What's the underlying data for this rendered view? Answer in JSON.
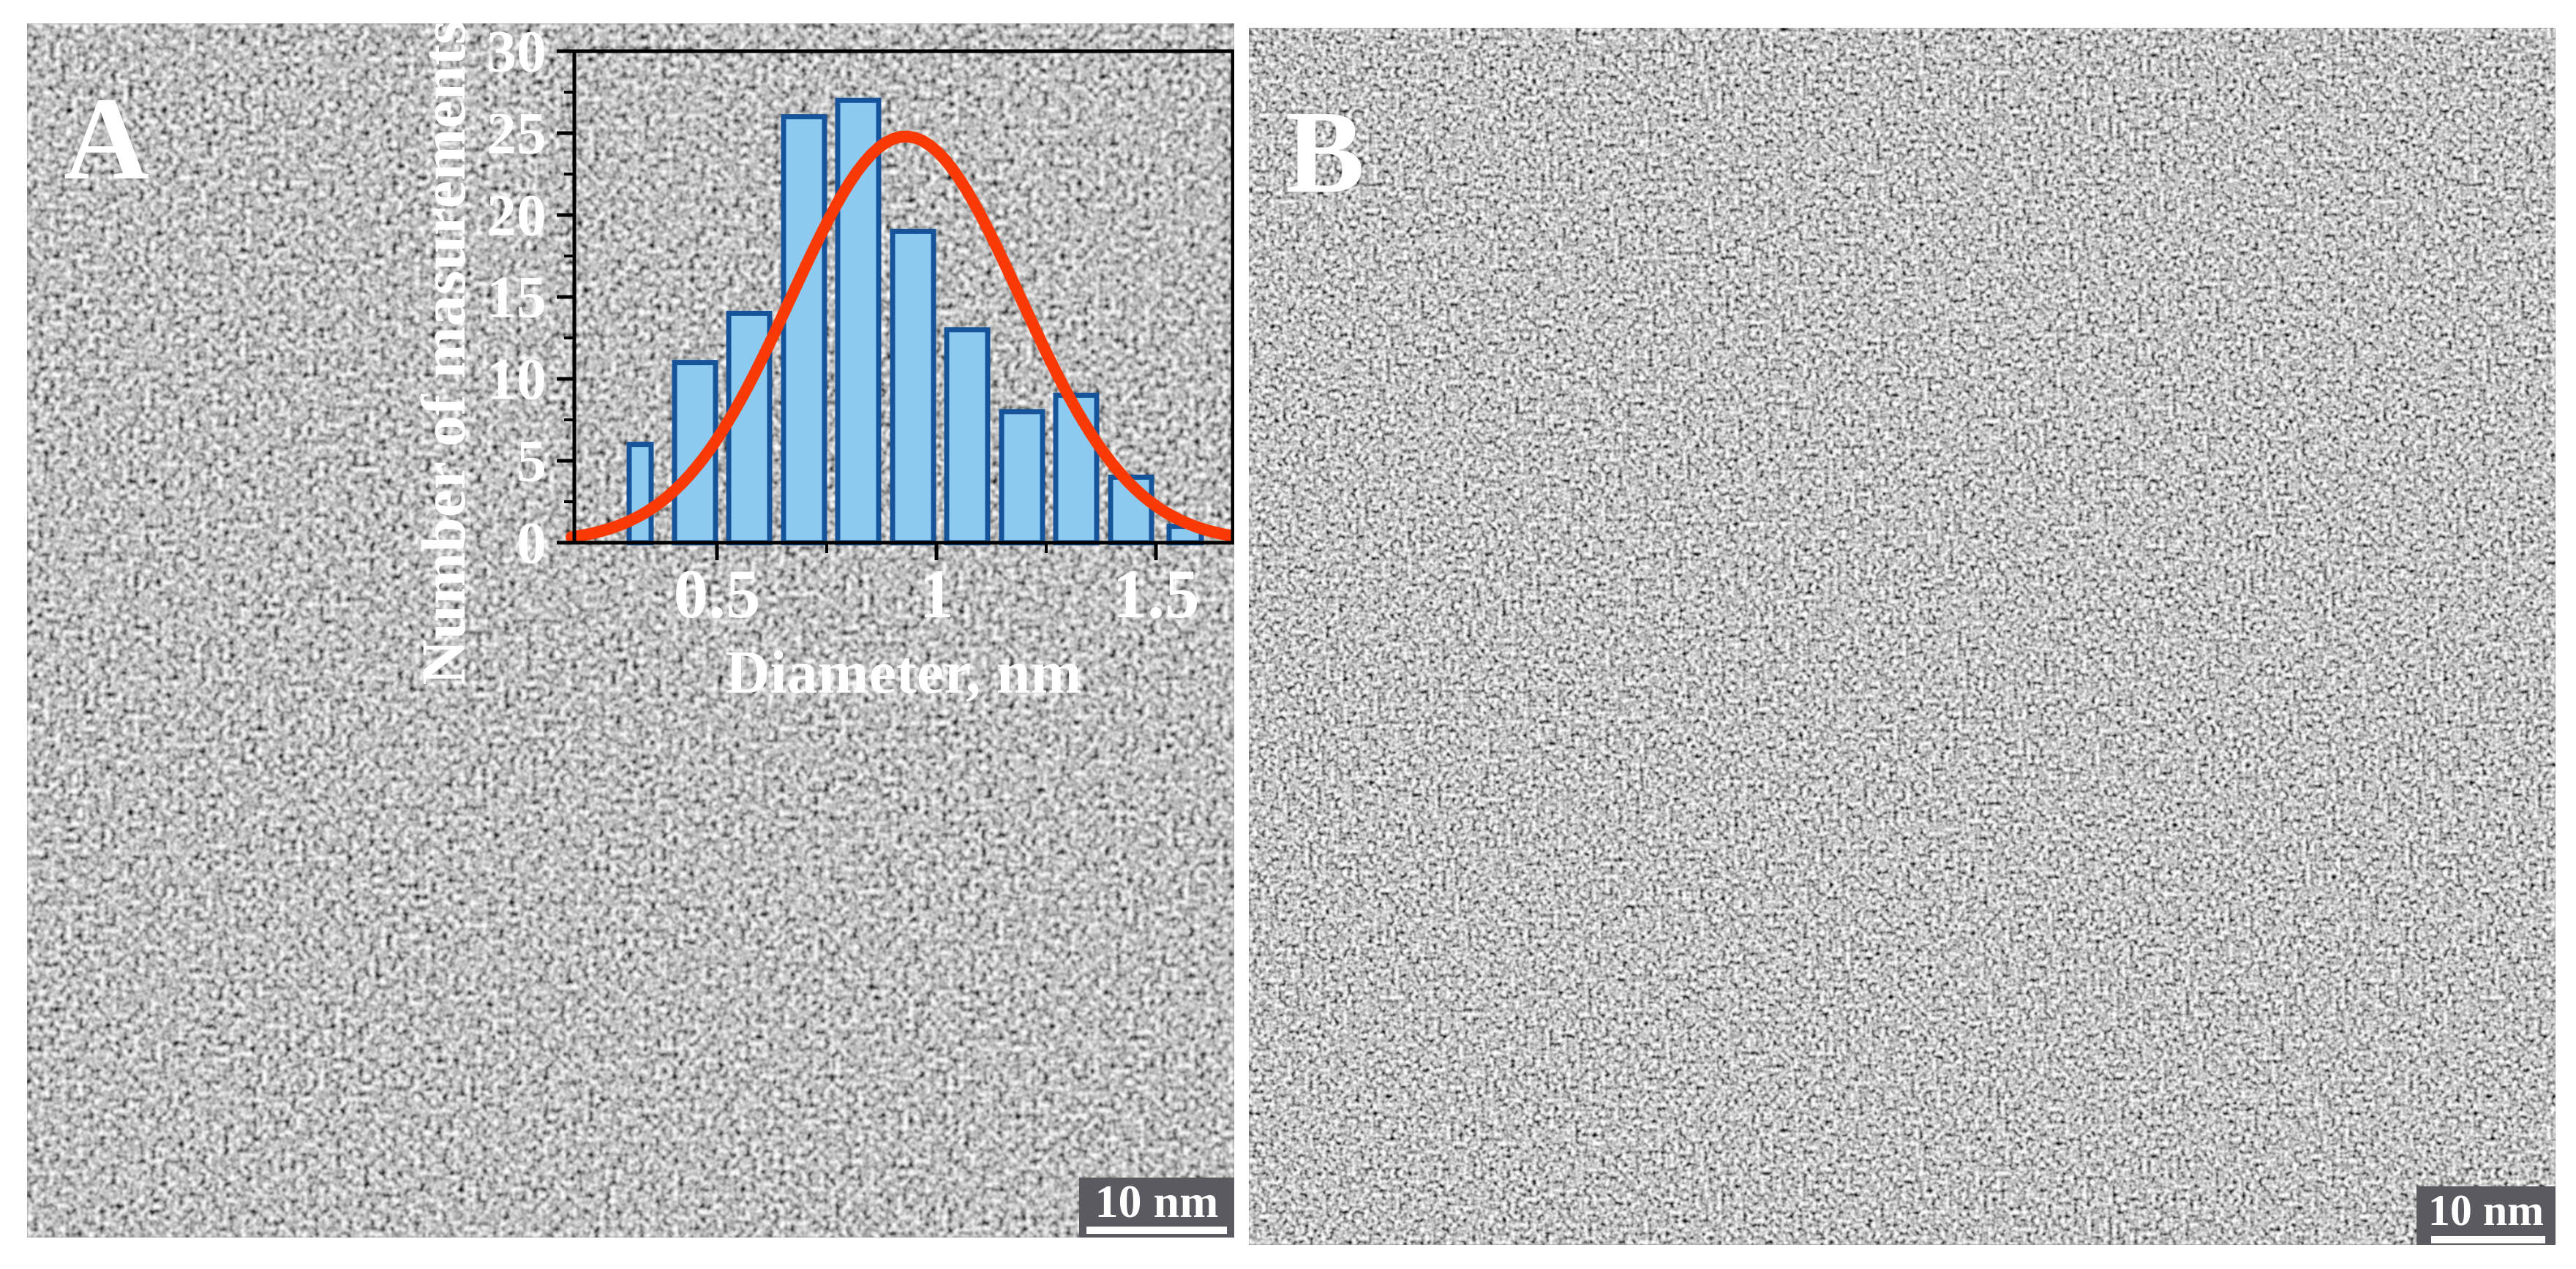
{
  "figure": {
    "background": "#ffffff",
    "divider_color": "#ffffff"
  },
  "panels": {
    "a": {
      "label": "A",
      "scalebar": "10 nm"
    },
    "b": {
      "label": "B",
      "scalebar": "10 nm"
    }
  },
  "colors": {
    "bar_fill": "#8ccaf2",
    "bar_border": "#15549b",
    "fit_curve": "#fa3a05",
    "axis": "#000000",
    "text": "#ffffff",
    "scalebar_bg": "#5a5a60",
    "scalebar_bar": "#ffffff",
    "tem_background": "#7f7f7f"
  },
  "chart_data": {
    "type": "bar",
    "title": "",
    "xlabel": "Diameter, nm",
    "ylabel": "Number of masurements",
    "x_tick_labels": [
      "0.5",
      "1",
      "1.5"
    ],
    "x_tick_values": [
      0.5,
      1.0,
      1.5
    ],
    "x_minor_tick_values": [
      0.75,
      1.25
    ],
    "y_ticks": [
      0,
      5,
      10,
      15,
      20,
      25,
      30
    ],
    "y_minor_step": 2.5,
    "ylim": [
      0,
      30
    ],
    "xlim_nm": [
      0.26,
      1.67
    ],
    "bin_centers_nm": [
      0.4,
      0.51,
      0.63,
      0.74,
      0.86,
      0.97,
      1.09,
      1.2,
      1.32,
      1.43,
      1.55
    ],
    "values": [
      6,
      11,
      14,
      26,
      27,
      19,
      13,
      8,
      9,
      4,
      1
    ],
    "fit_curve": {
      "type": "gaussian",
      "peak": 24.8,
      "mean_nm": 0.93,
      "sigma_nm": 0.26
    },
    "grid": false,
    "legend": null
  }
}
